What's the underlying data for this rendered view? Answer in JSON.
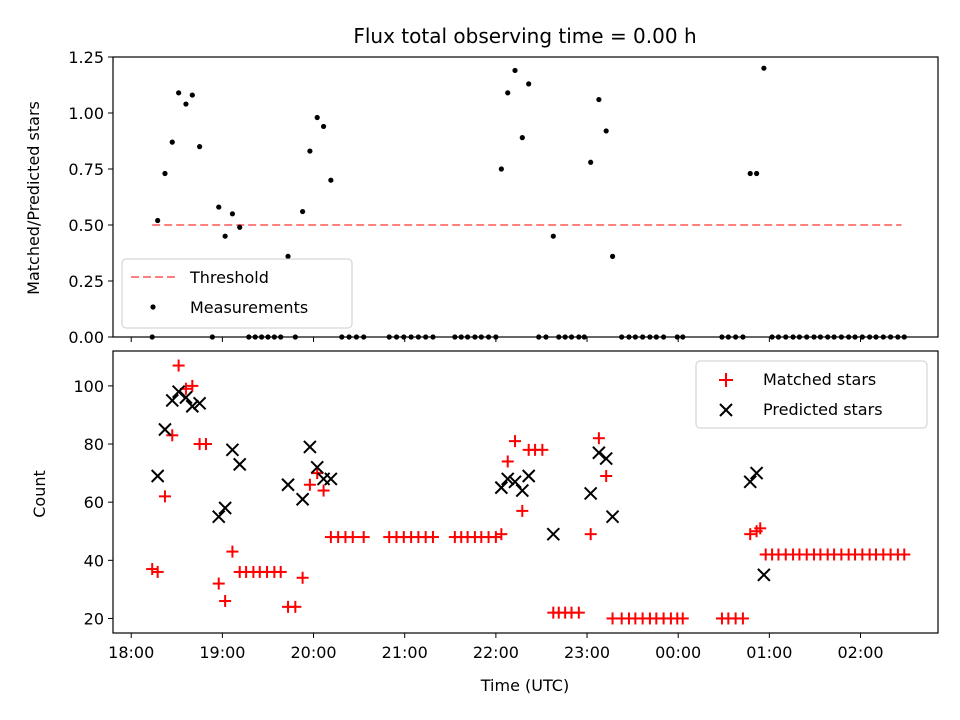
{
  "chart_data": [
    {
      "type": "scatter",
      "title": "Flux total observing time = 0.00 h",
      "ylabel": "Matched/Predicted stars",
      "xlabel": "",
      "x_unit": "hours after 18:00 UTC",
      "ylim": [
        0,
        1.25
      ],
      "y_ticks": [
        "0.00",
        "0.25",
        "0.50",
        "0.75",
        "1.00",
        "1.25"
      ],
      "legend": [
        "Threshold",
        "Measurements"
      ],
      "legend_position": "lower-left",
      "threshold": {
        "name": "Threshold",
        "y": 0.5,
        "x_start": 0.23,
        "x_end": 8.45,
        "color": "#ff7f7f",
        "style": "dashed"
      },
      "series": [
        {
          "name": "Measurements",
          "color": "#000000",
          "marker": "dot",
          "points": [
            [
              0.23,
              0.0
            ],
            [
              0.29,
              0.52
            ],
            [
              0.37,
              0.73
            ],
            [
              0.45,
              0.87
            ],
            [
              0.52,
              1.09
            ],
            [
              0.6,
              1.04
            ],
            [
              0.67,
              1.08
            ],
            [
              0.75,
              0.85
            ],
            [
              0.89,
              0.0
            ],
            [
              0.96,
              0.58
            ],
            [
              1.03,
              0.45
            ],
            [
              1.11,
              0.55
            ],
            [
              1.19,
              0.49
            ],
            [
              1.29,
              0.0
            ],
            [
              1.36,
              0.0
            ],
            [
              1.43,
              0.0
            ],
            [
              1.5,
              0.0
            ],
            [
              1.57,
              0.0
            ],
            [
              1.64,
              0.0
            ],
            [
              1.72,
              0.36
            ],
            [
              1.8,
              0.0
            ],
            [
              1.88,
              0.56
            ],
            [
              1.96,
              0.83
            ],
            [
              2.04,
              0.98
            ],
            [
              2.11,
              0.94
            ],
            [
              2.19,
              0.7
            ],
            [
              2.31,
              0.0
            ],
            [
              2.39,
              0.0
            ],
            [
              2.47,
              0.0
            ],
            [
              2.55,
              0.0
            ],
            [
              2.83,
              0.0
            ],
            [
              2.91,
              0.0
            ],
            [
              2.99,
              0.0
            ],
            [
              3.07,
              0.0
            ],
            [
              3.15,
              0.0
            ],
            [
              3.23,
              0.0
            ],
            [
              3.31,
              0.0
            ],
            [
              3.55,
              0.0
            ],
            [
              3.62,
              0.0
            ],
            [
              3.69,
              0.0
            ],
            [
              3.77,
              0.0
            ],
            [
              3.84,
              0.0
            ],
            [
              3.92,
              0.0
            ],
            [
              4.0,
              0.0
            ],
            [
              4.06,
              0.75
            ],
            [
              4.13,
              1.09
            ],
            [
              4.21,
              1.19
            ],
            [
              4.29,
              0.89
            ],
            [
              4.36,
              1.13
            ],
            [
              4.47,
              0.0
            ],
            [
              4.55,
              0.0
            ],
            [
              4.63,
              0.45
            ],
            [
              4.69,
              0.0
            ],
            [
              4.76,
              0.0
            ],
            [
              4.83,
              0.0
            ],
            [
              4.91,
              0.0
            ],
            [
              4.97,
              0.0
            ],
            [
              5.04,
              0.78
            ],
            [
              5.13,
              1.06
            ],
            [
              5.21,
              0.92
            ],
            [
              5.28,
              0.36
            ],
            [
              5.38,
              0.0
            ],
            [
              5.46,
              0.0
            ],
            [
              5.53,
              0.0
            ],
            [
              5.61,
              0.0
            ],
            [
              5.69,
              0.0
            ],
            [
              5.76,
              0.0
            ],
            [
              5.84,
              0.0
            ],
            [
              5.99,
              0.0
            ],
            [
              6.05,
              0.0
            ],
            [
              6.48,
              0.0
            ],
            [
              6.55,
              0.0
            ],
            [
              6.63,
              0.0
            ],
            [
              6.71,
              0.0
            ],
            [
              6.79,
              0.73
            ],
            [
              6.86,
              0.73
            ],
            [
              6.94,
              1.2
            ],
            [
              7.03,
              0.0
            ],
            [
              7.1,
              0.0
            ],
            [
              7.18,
              0.0
            ],
            [
              7.26,
              0.0
            ],
            [
              7.33,
              0.0
            ],
            [
              7.41,
              0.0
            ],
            [
              7.49,
              0.0
            ],
            [
              7.56,
              0.0
            ],
            [
              7.64,
              0.0
            ],
            [
              7.71,
              0.0
            ],
            [
              7.79,
              0.0
            ],
            [
              7.87,
              0.0
            ],
            [
              7.94,
              0.0
            ],
            [
              8.02,
              0.0
            ],
            [
              8.1,
              0.0
            ],
            [
              8.17,
              0.0
            ],
            [
              8.25,
              0.0
            ],
            [
              8.33,
              0.0
            ],
            [
              8.41,
              0.0
            ],
            [
              8.48,
              0.0
            ]
          ]
        }
      ]
    },
    {
      "type": "scatter",
      "title": "",
      "xlabel": "Time (UTC)",
      "ylabel": "Count",
      "x_unit": "hours after 18:00 UTC",
      "xlim": [
        -0.2,
        8.85
      ],
      "ylim": [
        15,
        112
      ],
      "x_ticks": [
        {
          "value": 0,
          "label": "18:00"
        },
        {
          "value": 1,
          "label": "19:00"
        },
        {
          "value": 2,
          "label": "20:00"
        },
        {
          "value": 3,
          "label": "21:00"
        },
        {
          "value": 4,
          "label": "22:00"
        },
        {
          "value": 5,
          "label": "23:00"
        },
        {
          "value": 6,
          "label": "00:00"
        },
        {
          "value": 7,
          "label": "01:00"
        },
        {
          "value": 8,
          "label": "02:00"
        }
      ],
      "y_ticks": [
        "20",
        "40",
        "60",
        "80",
        "100"
      ],
      "legend": [
        "Matched stars",
        "Predicted stars"
      ],
      "legend_position": "top-right",
      "series": [
        {
          "name": "Matched stars",
          "color": "#ff0000",
          "marker": "plus",
          "points": [
            [
              0.23,
              37
            ],
            [
              0.29,
              36
            ],
            [
              0.37,
              62
            ],
            [
              0.45,
              83
            ],
            [
              0.52,
              107
            ],
            [
              0.6,
              99
            ],
            [
              0.67,
              100
            ],
            [
              0.75,
              80
            ],
            [
              0.82,
              80
            ],
            [
              0.96,
              32
            ],
            [
              1.03,
              26
            ],
            [
              1.11,
              43
            ],
            [
              1.19,
              36
            ],
            [
              1.26,
              36
            ],
            [
              1.34,
              36
            ],
            [
              1.41,
              36
            ],
            [
              1.49,
              36
            ],
            [
              1.57,
              36
            ],
            [
              1.64,
              36
            ],
            [
              1.72,
              24
            ],
            [
              1.8,
              24
            ],
            [
              1.88,
              34
            ],
            [
              1.96,
              66
            ],
            [
              2.04,
              70
            ],
            [
              2.11,
              64
            ],
            [
              2.19,
              48
            ],
            [
              2.27,
              48
            ],
            [
              2.35,
              48
            ],
            [
              2.43,
              48
            ],
            [
              2.55,
              48
            ],
            [
              2.83,
              48
            ],
            [
              2.91,
              48
            ],
            [
              2.99,
              48
            ],
            [
              3.07,
              48
            ],
            [
              3.15,
              48
            ],
            [
              3.23,
              48
            ],
            [
              3.31,
              48
            ],
            [
              3.55,
              48
            ],
            [
              3.62,
              48
            ],
            [
              3.69,
              48
            ],
            [
              3.77,
              48
            ],
            [
              3.84,
              48
            ],
            [
              3.92,
              48
            ],
            [
              4.0,
              48
            ],
            [
              4.06,
              49
            ],
            [
              4.13,
              74
            ],
            [
              4.21,
              81
            ],
            [
              4.29,
              57
            ],
            [
              4.36,
              78
            ],
            [
              4.43,
              78
            ],
            [
              4.51,
              78
            ],
            [
              4.63,
              22
            ],
            [
              4.69,
              22
            ],
            [
              4.76,
              22
            ],
            [
              4.83,
              22
            ],
            [
              4.91,
              22
            ],
            [
              5.04,
              49
            ],
            [
              5.13,
              82
            ],
            [
              5.21,
              69
            ],
            [
              5.28,
              20
            ],
            [
              5.38,
              20
            ],
            [
              5.46,
              20
            ],
            [
              5.53,
              20
            ],
            [
              5.61,
              20
            ],
            [
              5.69,
              20
            ],
            [
              5.76,
              20
            ],
            [
              5.84,
              20
            ],
            [
              5.92,
              20
            ],
            [
              5.99,
              20
            ],
            [
              6.05,
              20
            ],
            [
              6.48,
              20
            ],
            [
              6.55,
              20
            ],
            [
              6.63,
              20
            ],
            [
              6.71,
              20
            ],
            [
              6.79,
              49
            ],
            [
              6.86,
              50
            ],
            [
              6.9,
              51
            ],
            [
              6.96,
              42
            ],
            [
              7.03,
              42
            ],
            [
              7.1,
              42
            ],
            [
              7.18,
              42
            ],
            [
              7.26,
              42
            ],
            [
              7.33,
              42
            ],
            [
              7.41,
              42
            ],
            [
              7.49,
              42
            ],
            [
              7.56,
              42
            ],
            [
              7.64,
              42
            ],
            [
              7.71,
              42
            ],
            [
              7.79,
              42
            ],
            [
              7.87,
              42
            ],
            [
              7.94,
              42
            ],
            [
              8.02,
              42
            ],
            [
              8.1,
              42
            ],
            [
              8.17,
              42
            ],
            [
              8.25,
              42
            ],
            [
              8.33,
              42
            ],
            [
              8.41,
              42
            ],
            [
              8.48,
              42
            ]
          ]
        },
        {
          "name": "Predicted stars",
          "color": "#000000",
          "marker": "x",
          "points": [
            [
              0.29,
              69
            ],
            [
              0.37,
              85
            ],
            [
              0.45,
              95
            ],
            [
              0.52,
              98
            ],
            [
              0.6,
              96
            ],
            [
              0.67,
              93
            ],
            [
              0.75,
              94
            ],
            [
              0.96,
              55
            ],
            [
              1.03,
              58
            ],
            [
              1.11,
              78
            ],
            [
              1.19,
              73
            ],
            [
              1.72,
              66
            ],
            [
              1.88,
              61
            ],
            [
              1.96,
              79
            ],
            [
              2.04,
              72
            ],
            [
              2.11,
              68
            ],
            [
              2.19,
              68
            ],
            [
              4.06,
              65
            ],
            [
              4.13,
              68
            ],
            [
              4.21,
              67
            ],
            [
              4.29,
              64
            ],
            [
              4.36,
              69
            ],
            [
              4.63,
              49
            ],
            [
              5.04,
              63
            ],
            [
              5.13,
              77
            ],
            [
              5.21,
              75
            ],
            [
              5.28,
              55
            ],
            [
              6.79,
              67
            ],
            [
              6.86,
              70
            ],
            [
              6.94,
              35
            ]
          ]
        }
      ]
    }
  ]
}
